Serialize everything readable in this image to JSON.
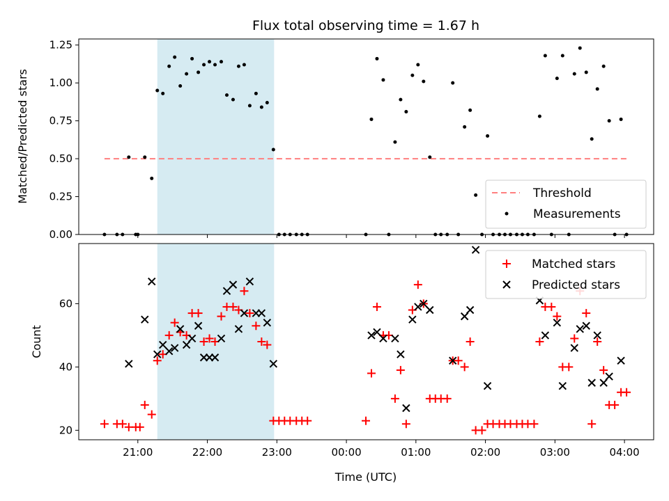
{
  "title": "Flux total observing time = 1.67 h",
  "chart_data": [
    {
      "type": "scatter",
      "panel": "top",
      "ylabel": "Matched/Predicted stars",
      "ylim": [
        0.0,
        1.29
      ],
      "yticks": [
        0.0,
        0.25,
        0.5,
        0.75,
        1.0,
        1.25
      ],
      "ytick_labels": [
        "0.00",
        "0.25",
        "0.50",
        "0.75",
        "1.00",
        "1.25"
      ],
      "x_unit": "hours after 21:00 UTC",
      "xlim": [
        -0.85,
        7.42
      ],
      "highlight_span": [
        0.28,
        1.96
      ],
      "threshold": {
        "name": "Threshold",
        "y": 0.5,
        "x": [
          -0.48,
          7.05
        ],
        "color": "#ff7f7f"
      },
      "series": [
        {
          "name": "Measurements",
          "color": "#000000",
          "points": [
            [
              -0.48,
              0.0
            ],
            [
              -0.3,
              0.0
            ],
            [
              -0.22,
              0.0
            ],
            [
              -0.13,
              0.51
            ],
            [
              -0.03,
              0.0
            ],
            [
              0.0,
              0.0
            ],
            [
              0.1,
              0.51
            ],
            [
              0.2,
              0.37
            ],
            [
              0.28,
              0.95
            ],
            [
              0.36,
              0.93
            ],
            [
              0.45,
              1.11
            ],
            [
              0.53,
              1.17
            ],
            [
              0.61,
              0.98
            ],
            [
              0.7,
              1.06
            ],
            [
              0.78,
              1.16
            ],
            [
              0.87,
              1.07
            ],
            [
              0.95,
              1.12
            ],
            [
              1.03,
              1.14
            ],
            [
              1.11,
              1.12
            ],
            [
              1.2,
              1.14
            ],
            [
              1.28,
              0.92
            ],
            [
              1.37,
              0.89
            ],
            [
              1.45,
              1.11
            ],
            [
              1.53,
              1.12
            ],
            [
              1.61,
              0.85
            ],
            [
              1.7,
              0.93
            ],
            [
              1.78,
              0.84
            ],
            [
              1.86,
              0.87
            ],
            [
              1.95,
              0.56
            ],
            [
              2.03,
              0.0
            ],
            [
              2.11,
              0.0
            ],
            [
              2.19,
              0.0
            ],
            [
              2.28,
              0.0
            ],
            [
              2.36,
              0.0
            ],
            [
              2.44,
              0.0
            ],
            [
              3.28,
              0.0
            ],
            [
              3.36,
              0.76
            ],
            [
              3.44,
              1.16
            ],
            [
              3.53,
              1.02
            ],
            [
              3.61,
              0.0
            ],
            [
              3.7,
              0.61
            ],
            [
              3.78,
              0.89
            ],
            [
              3.86,
              0.81
            ],
            [
              3.95,
              1.05
            ],
            [
              4.03,
              1.12
            ],
            [
              4.11,
              1.01
            ],
            [
              4.2,
              0.51
            ],
            [
              4.28,
              0.0
            ],
            [
              4.36,
              0.0
            ],
            [
              4.45,
              0.0
            ],
            [
              4.53,
              1.0
            ],
            [
              4.61,
              0.0
            ],
            [
              4.7,
              0.71
            ],
            [
              4.78,
              0.82
            ],
            [
              4.86,
              0.26
            ],
            [
              4.95,
              0.0
            ],
            [
              5.03,
              0.65
            ],
            [
              5.11,
              0.0
            ],
            [
              5.2,
              0.0
            ],
            [
              5.28,
              0.0
            ],
            [
              5.36,
              0.0
            ],
            [
              5.45,
              0.0
            ],
            [
              5.53,
              0.0
            ],
            [
              5.61,
              0.0
            ],
            [
              5.7,
              0.0
            ],
            [
              5.78,
              0.78
            ],
            [
              5.86,
              1.18
            ],
            [
              5.95,
              0.0
            ],
            [
              6.03,
              1.03
            ],
            [
              6.11,
              1.18
            ],
            [
              6.2,
              0.0
            ],
            [
              6.28,
              1.06
            ],
            [
              6.36,
              1.23
            ],
            [
              6.45,
              1.07
            ],
            [
              6.53,
              0.63
            ],
            [
              6.61,
              0.96
            ],
            [
              6.7,
              1.11
            ],
            [
              6.78,
              0.75
            ],
            [
              6.86,
              0.0
            ],
            [
              6.95,
              0.76
            ],
            [
              7.03,
              0.0
            ]
          ]
        }
      ],
      "legend": {
        "location": "lower-right",
        "entries": [
          "Threshold",
          "Measurements"
        ]
      },
      "shares_x_with": "bottom"
    },
    {
      "type": "scatter",
      "panel": "bottom",
      "xlabel": "Time (UTC)",
      "ylabel": "Count",
      "ylim": [
        17,
        79
      ],
      "yticks": [
        20,
        40,
        60
      ],
      "ytick_labels": [
        "20",
        "40",
        "60"
      ],
      "x_unit": "hours after 21:00 UTC",
      "xlim": [
        -0.85,
        7.42
      ],
      "xticks": [
        0,
        1,
        2,
        3,
        4,
        5,
        6,
        7
      ],
      "xtick_labels": [
        "21:00",
        "22:00",
        "23:00",
        "00:00",
        "01:00",
        "02:00",
        "03:00",
        "04:00"
      ],
      "highlight_span": [
        0.28,
        1.96
      ],
      "series": [
        {
          "name": "Matched stars",
          "marker": "plus",
          "color": "#ff0000",
          "points": [
            [
              -0.48,
              22
            ],
            [
              -0.3,
              22
            ],
            [
              -0.22,
              22
            ],
            [
              -0.13,
              21
            ],
            [
              -0.03,
              21
            ],
            [
              0.03,
              21
            ],
            [
              0.1,
              28
            ],
            [
              0.2,
              25
            ],
            [
              0.28,
              42
            ],
            [
              0.36,
              44
            ],
            [
              0.45,
              50
            ],
            [
              0.53,
              54
            ],
            [
              0.61,
              51
            ],
            [
              0.7,
              50
            ],
            [
              0.78,
              57
            ],
            [
              0.87,
              57
            ],
            [
              0.95,
              48
            ],
            [
              1.03,
              49
            ],
            [
              1.11,
              48
            ],
            [
              1.2,
              56
            ],
            [
              1.28,
              59
            ],
            [
              1.37,
              59
            ],
            [
              1.45,
              58
            ],
            [
              1.53,
              64
            ],
            [
              1.61,
              57
            ],
            [
              1.7,
              53
            ],
            [
              1.78,
              48
            ],
            [
              1.86,
              47
            ],
            [
              1.95,
              23
            ],
            [
              2.03,
              23
            ],
            [
              2.11,
              23
            ],
            [
              2.19,
              23
            ],
            [
              2.28,
              23
            ],
            [
              2.36,
              23
            ],
            [
              2.44,
              23
            ],
            [
              3.28,
              23
            ],
            [
              3.36,
              38
            ],
            [
              3.44,
              59
            ],
            [
              3.53,
              50
            ],
            [
              3.61,
              50
            ],
            [
              3.7,
              30
            ],
            [
              3.78,
              39
            ],
            [
              3.86,
              22
            ],
            [
              3.95,
              58
            ],
            [
              4.03,
              66
            ],
            [
              4.11,
              60
            ],
            [
              4.2,
              30
            ],
            [
              4.28,
              30
            ],
            [
              4.36,
              30
            ],
            [
              4.45,
              30
            ],
            [
              4.53,
              42
            ],
            [
              4.61,
              42
            ],
            [
              4.7,
              40
            ],
            [
              4.78,
              48
            ],
            [
              4.86,
              20
            ],
            [
              4.95,
              20
            ],
            [
              5.03,
              22
            ],
            [
              5.11,
              22
            ],
            [
              5.2,
              22
            ],
            [
              5.28,
              22
            ],
            [
              5.36,
              22
            ],
            [
              5.45,
              22
            ],
            [
              5.53,
              22
            ],
            [
              5.61,
              22
            ],
            [
              5.7,
              22
            ],
            [
              5.78,
              48
            ],
            [
              5.86,
              59
            ],
            [
              5.95,
              59
            ],
            [
              6.03,
              56
            ],
            [
              6.11,
              40
            ],
            [
              6.2,
              40
            ],
            [
              6.28,
              49
            ],
            [
              6.36,
              64
            ],
            [
              6.45,
              57
            ],
            [
              6.53,
              22
            ],
            [
              6.61,
              48
            ],
            [
              6.7,
              39
            ],
            [
              6.78,
              28
            ],
            [
              6.86,
              28
            ],
            [
              6.95,
              32
            ],
            [
              7.03,
              32
            ]
          ]
        },
        {
          "name": "Predicted stars",
          "marker": "x",
          "color": "#000000",
          "points": [
            [
              -0.13,
              41
            ],
            [
              0.1,
              55
            ],
            [
              0.2,
              67
            ],
            [
              0.28,
              44
            ],
            [
              0.36,
              47
            ],
            [
              0.45,
              45
            ],
            [
              0.53,
              46
            ],
            [
              0.61,
              52
            ],
            [
              0.7,
              47
            ],
            [
              0.78,
              49
            ],
            [
              0.87,
              53
            ],
            [
              0.95,
              43
            ],
            [
              1.03,
              43
            ],
            [
              1.11,
              43
            ],
            [
              1.2,
              49
            ],
            [
              1.28,
              64
            ],
            [
              1.37,
              66
            ],
            [
              1.45,
              52
            ],
            [
              1.53,
              57
            ],
            [
              1.61,
              67
            ],
            [
              1.7,
              57
            ],
            [
              1.78,
              57
            ],
            [
              1.86,
              54
            ],
            [
              1.95,
              41
            ],
            [
              3.36,
              50
            ],
            [
              3.44,
              51
            ],
            [
              3.53,
              49
            ],
            [
              3.7,
              49
            ],
            [
              3.78,
              44
            ],
            [
              3.86,
              27
            ],
            [
              3.95,
              55
            ],
            [
              4.03,
              59
            ],
            [
              4.11,
              60
            ],
            [
              4.2,
              58
            ],
            [
              4.53,
              42
            ],
            [
              4.7,
              56
            ],
            [
              4.78,
              58
            ],
            [
              4.86,
              77
            ],
            [
              5.03,
              34
            ],
            [
              5.78,
              61
            ],
            [
              5.86,
              50
            ],
            [
              6.03,
              54
            ],
            [
              6.11,
              34
            ],
            [
              6.28,
              46
            ],
            [
              6.36,
              52
            ],
            [
              6.45,
              53
            ],
            [
              6.53,
              35
            ],
            [
              6.61,
              50
            ],
            [
              6.7,
              35
            ],
            [
              6.78,
              37
            ],
            [
              6.95,
              42
            ]
          ]
        }
      ],
      "legend": {
        "location": "upper-right",
        "entries": [
          "Matched stars",
          "Predicted stars"
        ]
      }
    }
  ]
}
